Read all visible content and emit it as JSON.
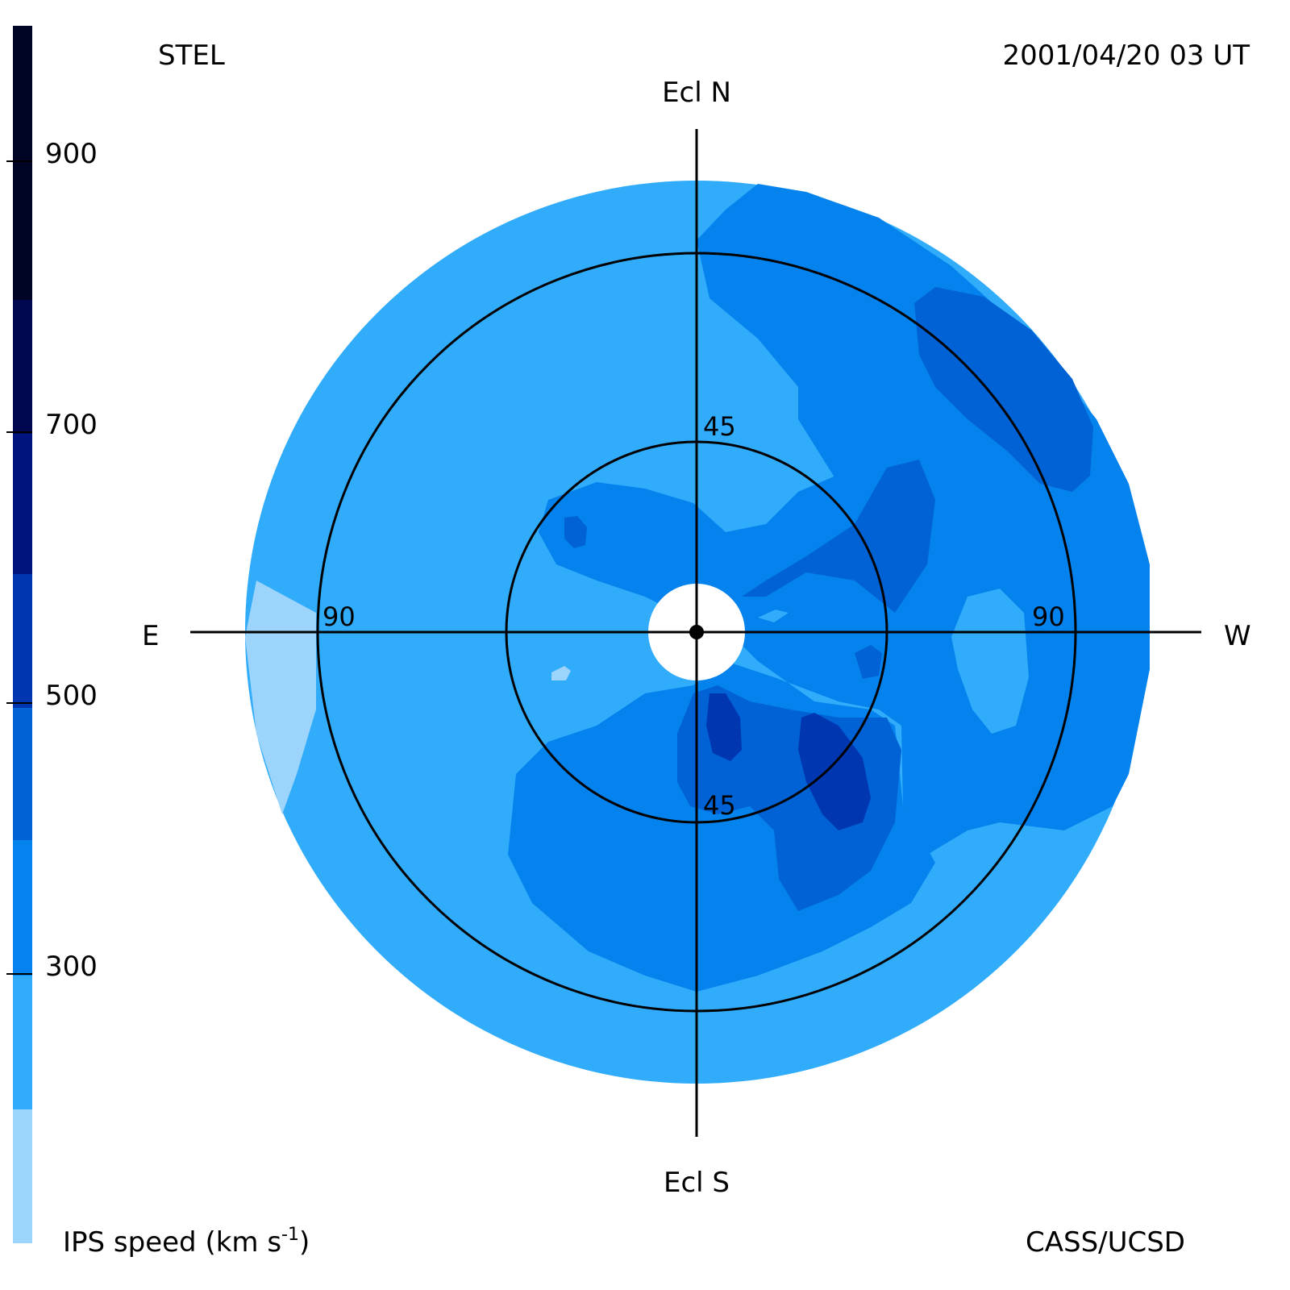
{
  "header": {
    "station": "STEL",
    "datetime": "2001/04/20 03 UT"
  },
  "footer": {
    "credit": "CASS/UCSD",
    "colorbar_title": "IPS speed (km s",
    "colorbar_title_exp": "-1",
    "colorbar_title_close": ")"
  },
  "compass": {
    "north": "Ecl N",
    "south": "Ecl S",
    "east": "E",
    "west": "W"
  },
  "rings": {
    "inner_label_top": "45",
    "inner_label_bottom": "45",
    "outer_label_left": "90",
    "outer_label_right": "90"
  },
  "colors": {
    "band_1": "#9dd4fb",
    "band_2": "#30acfb",
    "band_3": "#0482ee",
    "band_4": "#0062d4",
    "band_5": "#0036b0",
    "band_6": "#00147f",
    "band_7": "#000850",
    "band_8": "#000525"
  },
  "colorbar": {
    "ticks": [
      "300",
      "500",
      "700",
      "900"
    ],
    "tick_values": [
      300,
      500,
      700,
      900
    ],
    "range": [
      100,
      1000
    ]
  }
}
